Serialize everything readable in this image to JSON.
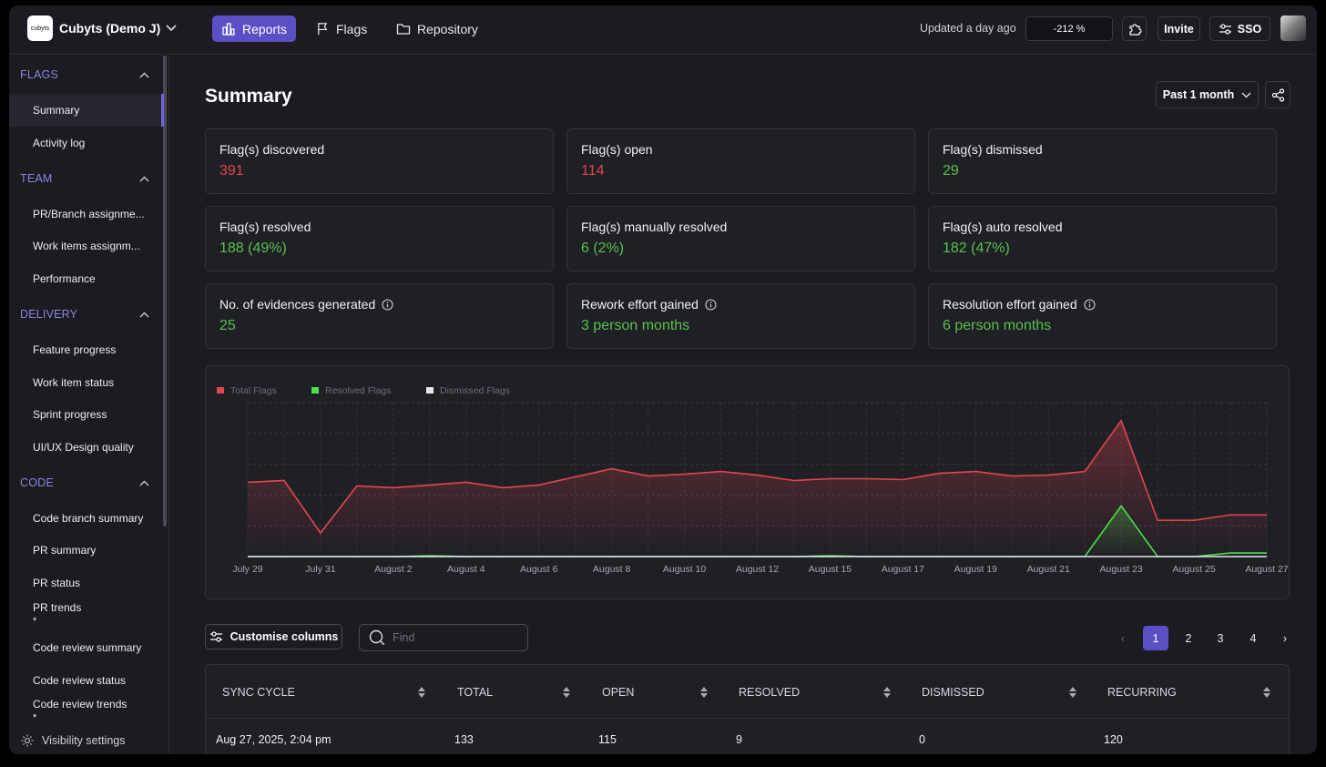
{
  "topbar": {
    "logo_text": "cubyts",
    "org_name": "Cubyts (Demo J)",
    "nav": [
      {
        "label": "Reports",
        "active": true
      },
      {
        "label": "Flags",
        "active": false
      },
      {
        "label": "Repository",
        "active": false
      }
    ],
    "updated": "Updated a day ago",
    "percent": "-212 %",
    "invite_label": "Invite",
    "sso_label": "SSO"
  },
  "sidebar": {
    "sections": [
      {
        "title": "FLAGS",
        "items": [
          "Summary",
          "Activity log"
        ]
      },
      {
        "title": "TEAM",
        "items": [
          "PR/Branch assignme...",
          "Work items assignm...",
          "Performance"
        ]
      },
      {
        "title": "DELIVERY",
        "items": [
          "Feature progress",
          "Work item status",
          "Sprint progress",
          "UI/UX Design quality"
        ]
      },
      {
        "title": "CODE",
        "items": [
          "Code branch summary",
          "PR summary",
          "PR status",
          "PR trends",
          "Code review summary",
          "Code review status",
          "Code review trends"
        ]
      }
    ],
    "selected": "Summary",
    "trend_marker": "*",
    "visibility_label": "Visibility settings"
  },
  "page": {
    "title": "Summary",
    "period": "Past 1 month"
  },
  "cards": [
    {
      "label": "Flag(s) discovered",
      "value": "391",
      "color": "#e2474d",
      "info": false
    },
    {
      "label": "Flag(s) open",
      "value": "114",
      "color": "#e2474d",
      "info": false
    },
    {
      "label": "Flag(s) dismissed",
      "value": "29",
      "color": "#58c24a",
      "info": false
    },
    {
      "label": "Flag(s) resolved",
      "value": "188 (49%)",
      "color": "#58c24a",
      "info": false
    },
    {
      "label": "Flag(s) manually resolved",
      "value": "6 (2%)",
      "color": "#58c24a",
      "info": false
    },
    {
      "label": "Flag(s) auto resolved",
      "value": "182 (47%)",
      "color": "#58c24a",
      "info": false
    },
    {
      "label": "No. of evidences generated",
      "value": "25",
      "color": "#58c24a",
      "info": true
    },
    {
      "label": "Rework effort gained",
      "value": "3 person months",
      "color": "#58c24a",
      "info": true
    },
    {
      "label": "Resolution effort gained",
      "value": "6 person months",
      "color": "#58c24a",
      "info": true
    }
  ],
  "chart_data": {
    "type": "area",
    "x": [
      "July 29",
      "July 30",
      "July 31",
      "August 1",
      "August 2",
      "August 3",
      "August 4",
      "August 5",
      "August 6",
      "August 7",
      "August 8",
      "August 9",
      "August 10",
      "August 11",
      "August 12",
      "August 13",
      "August 15",
      "August 16",
      "August 17",
      "August 18",
      "August 19",
      "August 20",
      "August 21",
      "August 22",
      "August 23",
      "August 24",
      "August 25",
      "August 26",
      "August 27"
    ],
    "tick_labels": [
      "July 29",
      "July 31",
      "August 2",
      "August 4",
      "August 6",
      "August 8",
      "August 10",
      "August 12",
      "August 15",
      "August 17",
      "August 19",
      "August 21",
      "August 23",
      "August 25",
      "August 27"
    ],
    "series": [
      {
        "name": "Total Flags",
        "color": "#e2474d",
        "values": [
          82,
          84,
          26,
          78,
          76,
          79,
          82,
          76,
          79,
          88,
          97,
          89,
          91,
          94,
          90,
          84,
          86,
          86,
          85,
          92,
          94,
          89,
          90,
          94,
          150,
          40,
          40,
          46,
          46
        ]
      },
      {
        "name": "Resolved Flags",
        "color": "#4be04b",
        "values": [
          0,
          0,
          0,
          0,
          0,
          1,
          0,
          0,
          0,
          0,
          0,
          0,
          0,
          0,
          0,
          0,
          1,
          0,
          0,
          0,
          0,
          0,
          0,
          0,
          56,
          0,
          0,
          4,
          4
        ]
      },
      {
        "name": "Dismissed Flags",
        "color": "#e6e6ec",
        "values": [
          0,
          0,
          0,
          0,
          0,
          0,
          0,
          0,
          0,
          0,
          0,
          0,
          0,
          0,
          0,
          0,
          0,
          0,
          0,
          0,
          0,
          0,
          0,
          0,
          0,
          0,
          0,
          0,
          0
        ]
      }
    ],
    "ylim": [
      0,
      170
    ],
    "legend": "top-left",
    "grid": true
  },
  "table": {
    "customise_label": "Customise columns",
    "find_placeholder": "Find",
    "pages": [
      "1",
      "2",
      "3",
      "4"
    ],
    "current_page": "1",
    "prev_glyph": "‹",
    "next_glyph": "›",
    "columns": [
      "SYNC CYCLE",
      "TOTAL",
      "OPEN",
      "RESOLVED",
      "DISMISSED",
      "RECURRING"
    ],
    "rows": [
      [
        "Aug 27, 2025, 2:04 pm",
        "133",
        "115",
        "9",
        "0",
        "120"
      ]
    ]
  }
}
